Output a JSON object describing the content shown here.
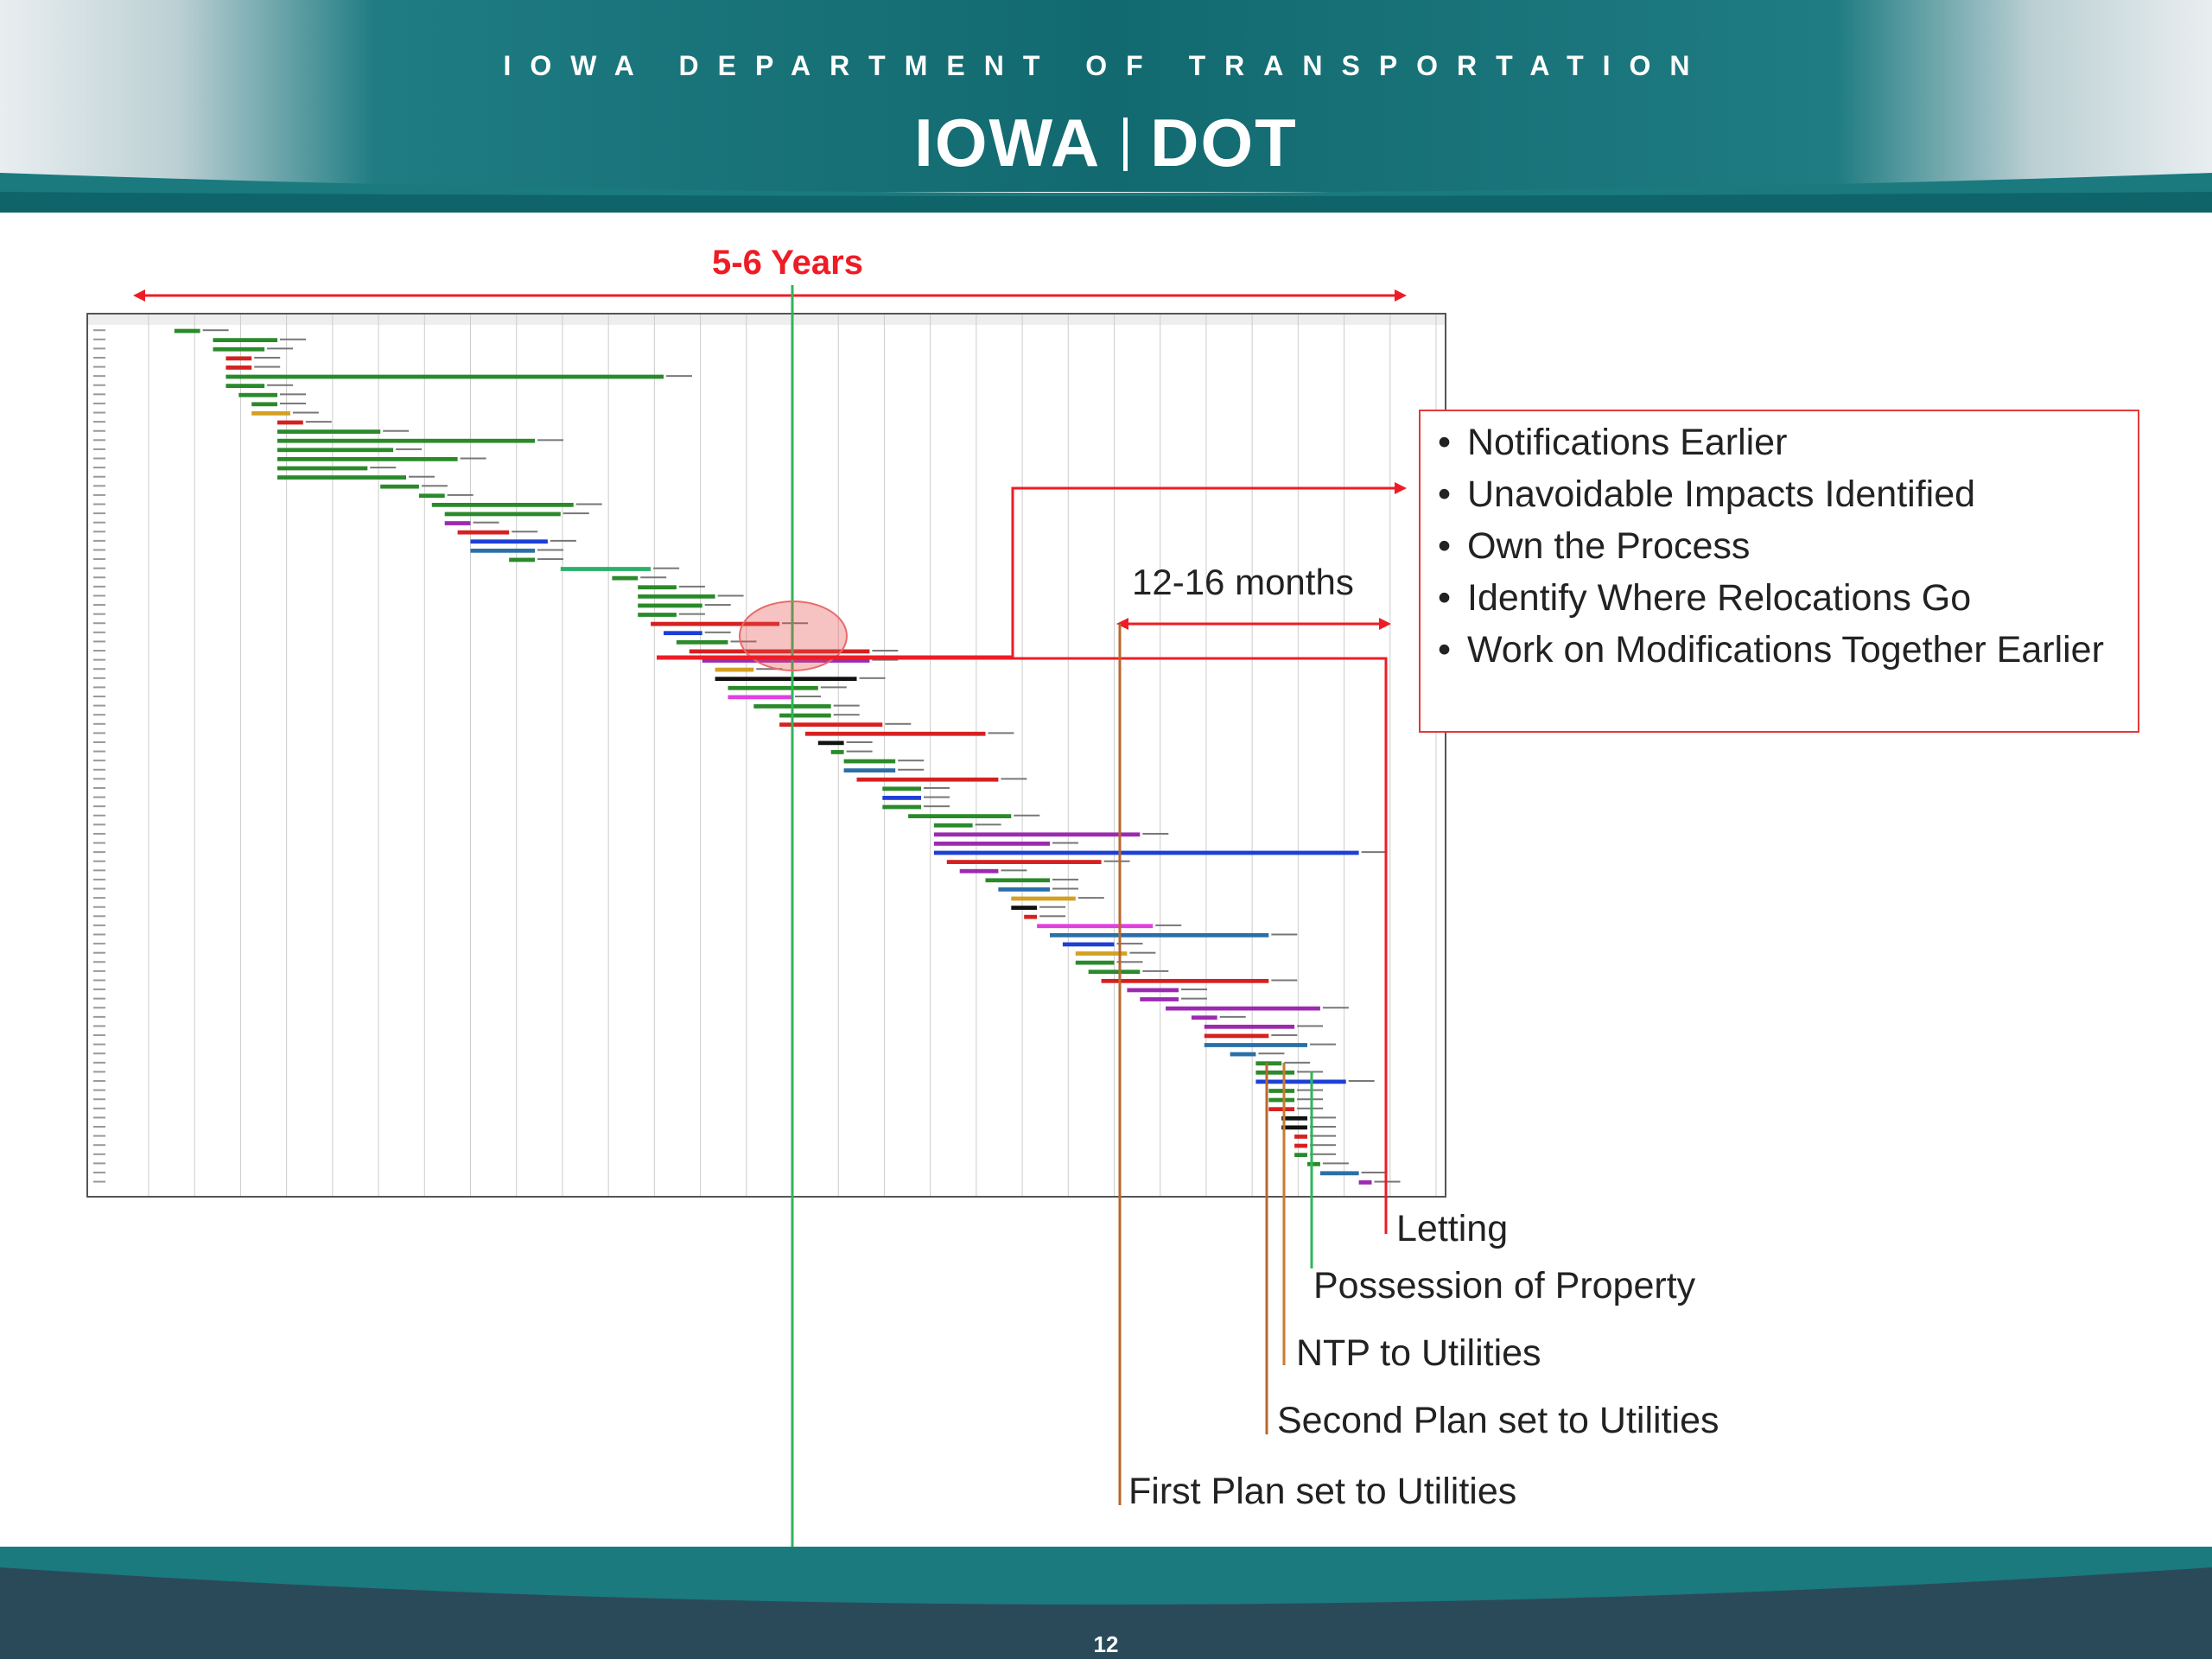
{
  "header": {
    "agency": "IOWA DEPARTMENT OF TRANSPORTATION",
    "logo_left": "IOWA",
    "logo_right": "DOT"
  },
  "timeline": {
    "duration": "5-6 Years",
    "window": "12-16 months"
  },
  "benefits": [
    "Notifications Earlier",
    "Unavoidable Impacts Identified",
    "Own the Process",
    "Identify Where Relocations Go",
    "Work on Modifications Together Earlier"
  ],
  "milestones": [
    "Letting",
    "Possession of Property",
    "NTP to Utilities",
    "Second Plan set to Utilities",
    "First Plan set to Utilities"
  ],
  "gantt": {
    "tasks": [
      {
        "start": 0.02,
        "end": 0.04,
        "color": "#2a8a2a"
      },
      {
        "start": 0.05,
        "end": 0.1,
        "color": "#2a8a2a"
      },
      {
        "start": 0.05,
        "end": 0.09,
        "color": "#2a8a2a"
      },
      {
        "start": 0.06,
        "end": 0.08,
        "color": "#d62020"
      },
      {
        "start": 0.06,
        "end": 0.08,
        "color": "#d62020"
      },
      {
        "start": 0.06,
        "end": 0.4,
        "color": "#2a8a2a"
      },
      {
        "start": 0.06,
        "end": 0.09,
        "color": "#2a8a2a"
      },
      {
        "start": 0.07,
        "end": 0.1,
        "color": "#2a8a2a"
      },
      {
        "start": 0.08,
        "end": 0.1,
        "color": "#2a8a2a"
      },
      {
        "start": 0.08,
        "end": 0.11,
        "color": "#d4a020"
      },
      {
        "start": 0.1,
        "end": 0.12,
        "color": "#d62020"
      },
      {
        "start": 0.1,
        "end": 0.18,
        "color": "#2a8a2a"
      },
      {
        "start": 0.1,
        "end": 0.3,
        "color": "#2a8a2a"
      },
      {
        "start": 0.1,
        "end": 0.19,
        "color": "#2a8a2a"
      },
      {
        "start": 0.1,
        "end": 0.24,
        "color": "#2a8a2a"
      },
      {
        "start": 0.1,
        "end": 0.17,
        "color": "#2a8a2a"
      },
      {
        "start": 0.1,
        "end": 0.2,
        "color": "#2a8a2a"
      },
      {
        "start": 0.18,
        "end": 0.21,
        "color": "#2a8a2a"
      },
      {
        "start": 0.21,
        "end": 0.23,
        "color": "#2a8a2a"
      },
      {
        "start": 0.22,
        "end": 0.33,
        "color": "#2a8a2a"
      },
      {
        "start": 0.23,
        "end": 0.32,
        "color": "#2a8a2a"
      },
      {
        "start": 0.23,
        "end": 0.25,
        "color": "#9c2ab0"
      },
      {
        "start": 0.24,
        "end": 0.28,
        "color": "#d62020"
      },
      {
        "start": 0.25,
        "end": 0.31,
        "color": "#1c3fd6"
      },
      {
        "start": 0.25,
        "end": 0.3,
        "color": "#2a6fa8"
      },
      {
        "start": 0.28,
        "end": 0.3,
        "color": "#2a8a2a"
      },
      {
        "start": 0.32,
        "end": 0.39,
        "color": "#2ab06a"
      },
      {
        "start": 0.36,
        "end": 0.38,
        "color": "#2a8a2a"
      },
      {
        "start": 0.38,
        "end": 0.41,
        "color": "#2a8a2a"
      },
      {
        "start": 0.38,
        "end": 0.44,
        "color": "#2a8a2a"
      },
      {
        "start": 0.38,
        "end": 0.43,
        "color": "#2a8a2a"
      },
      {
        "start": 0.38,
        "end": 0.41,
        "color": "#2a8a2a"
      },
      {
        "start": 0.39,
        "end": 0.49,
        "color": "#d62020"
      },
      {
        "start": 0.4,
        "end": 0.43,
        "color": "#1c3fd6"
      },
      {
        "start": 0.41,
        "end": 0.45,
        "color": "#2a8a2a"
      },
      {
        "start": 0.42,
        "end": 0.56,
        "color": "#d62020"
      },
      {
        "start": 0.43,
        "end": 0.56,
        "color": "#9c2ab0"
      },
      {
        "start": 0.44,
        "end": 0.47,
        "color": "#d4a020"
      },
      {
        "start": 0.44,
        "end": 0.55,
        "color": "#111111"
      },
      {
        "start": 0.45,
        "end": 0.52,
        "color": "#2a8a2a"
      },
      {
        "start": 0.45,
        "end": 0.5,
        "color": "#e040e0"
      },
      {
        "start": 0.47,
        "end": 0.53,
        "color": "#2a8a2a"
      },
      {
        "start": 0.49,
        "end": 0.53,
        "color": "#2a8a2a"
      },
      {
        "start": 0.49,
        "end": 0.57,
        "color": "#d62020"
      },
      {
        "start": 0.51,
        "end": 0.65,
        "color": "#d62020"
      },
      {
        "start": 0.52,
        "end": 0.54,
        "color": "#111111"
      },
      {
        "start": 0.53,
        "end": 0.54,
        "color": "#2a8a2a"
      },
      {
        "start": 0.54,
        "end": 0.58,
        "color": "#2a8a2a"
      },
      {
        "start": 0.54,
        "end": 0.58,
        "color": "#2a6fa8"
      },
      {
        "start": 0.55,
        "end": 0.66,
        "color": "#d62020"
      },
      {
        "start": 0.57,
        "end": 0.6,
        "color": "#2a8a2a"
      },
      {
        "start": 0.57,
        "end": 0.6,
        "color": "#1c3fd6"
      },
      {
        "start": 0.57,
        "end": 0.6,
        "color": "#2a8a2a"
      },
      {
        "start": 0.59,
        "end": 0.67,
        "color": "#2a8a2a"
      },
      {
        "start": 0.61,
        "end": 0.64,
        "color": "#2a8a2a"
      },
      {
        "start": 0.61,
        "end": 0.77,
        "color": "#9c2ab0"
      },
      {
        "start": 0.61,
        "end": 0.7,
        "color": "#9c2ab0"
      },
      {
        "start": 0.61,
        "end": 0.94,
        "color": "#1c3fd6"
      },
      {
        "start": 0.62,
        "end": 0.74,
        "color": "#d62020"
      },
      {
        "start": 0.63,
        "end": 0.66,
        "color": "#9c2ab0"
      },
      {
        "start": 0.65,
        "end": 0.7,
        "color": "#2a8a2a"
      },
      {
        "start": 0.66,
        "end": 0.7,
        "color": "#2a6fa8"
      },
      {
        "start": 0.67,
        "end": 0.72,
        "color": "#d4a020"
      },
      {
        "start": 0.67,
        "end": 0.69,
        "color": "#111111"
      },
      {
        "start": 0.68,
        "end": 0.69,
        "color": "#d62020"
      },
      {
        "start": 0.69,
        "end": 0.78,
        "color": "#e040e0"
      },
      {
        "start": 0.7,
        "end": 0.87,
        "color": "#2a6fa8"
      },
      {
        "start": 0.71,
        "end": 0.75,
        "color": "#1c3fd6"
      },
      {
        "start": 0.72,
        "end": 0.76,
        "color": "#d4a020"
      },
      {
        "start": 0.72,
        "end": 0.75,
        "color": "#2a8a2a"
      },
      {
        "start": 0.73,
        "end": 0.77,
        "color": "#2a8a2a"
      },
      {
        "start": 0.74,
        "end": 0.87,
        "color": "#d62020"
      },
      {
        "start": 0.76,
        "end": 0.8,
        "color": "#9c2ab0"
      },
      {
        "start": 0.77,
        "end": 0.8,
        "color": "#9c2ab0"
      },
      {
        "start": 0.79,
        "end": 0.91,
        "color": "#9c2ab0"
      },
      {
        "start": 0.81,
        "end": 0.83,
        "color": "#9c2ab0"
      },
      {
        "start": 0.82,
        "end": 0.89,
        "color": "#9c2ab0"
      },
      {
        "start": 0.82,
        "end": 0.87,
        "color": "#d62020"
      },
      {
        "start": 0.82,
        "end": 0.9,
        "color": "#2a6fa8"
      },
      {
        "start": 0.84,
        "end": 0.86,
        "color": "#2a6fa8"
      },
      {
        "start": 0.86,
        "end": 0.88,
        "color": "#2a8a2a"
      },
      {
        "start": 0.86,
        "end": 0.89,
        "color": "#2a8a2a"
      },
      {
        "start": 0.86,
        "end": 0.93,
        "color": "#1c3fd6"
      },
      {
        "start": 0.87,
        "end": 0.89,
        "color": "#2a8a2a"
      },
      {
        "start": 0.87,
        "end": 0.89,
        "color": "#2a8a2a"
      },
      {
        "start": 0.87,
        "end": 0.89,
        "color": "#d62020"
      },
      {
        "start": 0.88,
        "end": 0.9,
        "color": "#111111"
      },
      {
        "start": 0.88,
        "end": 0.9,
        "color": "#111111"
      },
      {
        "start": 0.89,
        "end": 0.9,
        "color": "#d62020"
      },
      {
        "start": 0.89,
        "end": 0.9,
        "color": "#d62020"
      },
      {
        "start": 0.89,
        "end": 0.9,
        "color": "#2a8a2a"
      },
      {
        "start": 0.9,
        "end": 0.91,
        "color": "#2a8a2a"
      },
      {
        "start": 0.91,
        "end": 0.94,
        "color": "#2a6fa8"
      },
      {
        "start": 0.94,
        "end": 0.95,
        "color": "#9c2ab0"
      }
    ]
  },
  "page_number": "12",
  "colors": {
    "teal": "#1a7a7e",
    "red": "#ee1c25",
    "brown": "#b8672e",
    "orange": "#c97a30",
    "green": "#2fb55a"
  }
}
